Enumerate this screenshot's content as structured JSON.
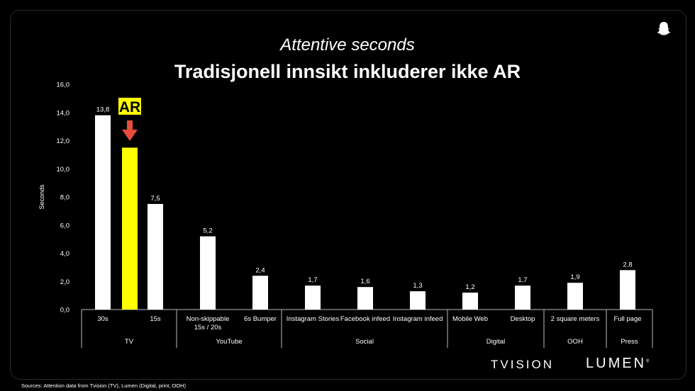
{
  "subtitle": "Attentive seconds",
  "title": "Tradisjonell innsikt inkluderer ikke AR",
  "source": "Sources: Attention data from Tvision (TV), Lumen (Digital, print, OOH)",
  "logos": {
    "tvision": "TVISION",
    "lumen": "LUMEN",
    "lumen_mark": "®"
  },
  "colors": {
    "bar": "#ffffff",
    "highlight": "#ffff00",
    "arrow": "#e84c3d",
    "background": "#000000"
  },
  "icons": {
    "corner": "ghost-icon"
  },
  "chart_data": {
    "type": "bar",
    "ylabel": "Seconds",
    "ylim": [
      0,
      16
    ],
    "yticks": [
      "0,0",
      "2,0",
      "4,0",
      "6,0",
      "8,0",
      "10,0",
      "12,0",
      "14,0",
      "16,0"
    ],
    "ytick_values": [
      0,
      2,
      4,
      6,
      8,
      10,
      12,
      14,
      16
    ],
    "categories": [
      "30s",
      "",
      "15s",
      "Non-skippable 15s / 20s",
      "6s Bumper",
      "Instagram Stories",
      "Facebook infeed",
      "Instagram infeed",
      "Mobile Web",
      "Desktop",
      "2 square meters",
      "Full page"
    ],
    "values": [
      13.8,
      11.5,
      7.5,
      5.2,
      2.4,
      1.7,
      1.6,
      1.3,
      1.2,
      1.7,
      1.9,
      2.8
    ],
    "data_labels": [
      "13,8",
      "",
      "7,5",
      "5,2",
      "2,4",
      "1,7",
      "1,6",
      "1,3",
      "1,2",
      "1,7",
      "1,9",
      "2,8"
    ],
    "highlight_index": 1,
    "highlight_label": "AR",
    "groups": [
      {
        "name": "TV",
        "count": 3
      },
      {
        "name": "YouTube",
        "count": 2
      },
      {
        "name": "Social",
        "count": 3
      },
      {
        "name": "Digital",
        "count": 2
      },
      {
        "name": "OOH",
        "count": 1
      },
      {
        "name": "Press",
        "count": 1
      }
    ]
  }
}
